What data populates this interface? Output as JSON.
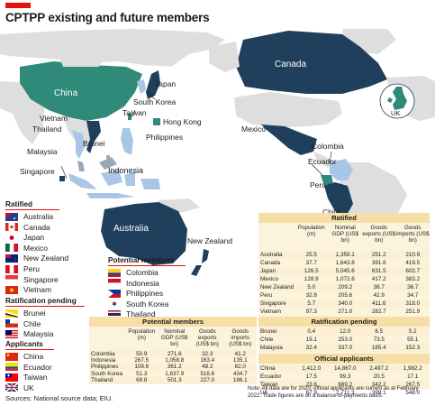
{
  "title": "CPTPP existing and future members",
  "colors": {
    "ratified": "#1f3f5c",
    "potential": "#a9c6e6",
    "pending": "#c8b7a0",
    "applicant": "#2f8a7a",
    "land": "#dedede",
    "accent": "#e3120b",
    "band": "#f5dfa6"
  },
  "map_labels": {
    "canada": "Canada",
    "china": "China",
    "japan": "Japan",
    "south_korea": "South Korea",
    "taiwan": "Taiwan",
    "hong_kong": "Hong Kong",
    "philippines": "Philippines",
    "vietnam": "Vietnam",
    "thailand": "Thailand",
    "malaysia": "Malaysia",
    "brunei": "Brunei",
    "singapore": "Singapore",
    "indonesia": "Indonesia",
    "australia": "Australia",
    "new_zealand": "New Zealand",
    "mexico": "Mexico",
    "colombia": "Colombia",
    "ecuador": "Ecuador",
    "peru": "Peru",
    "chile": "Chile",
    "uk": "UK"
  },
  "legend": {
    "ratified": {
      "heading": "Ratified",
      "items": [
        {
          "name": "Australia",
          "flag": "australia-flag"
        },
        {
          "name": "Canada",
          "flag": "canada-flag"
        },
        {
          "name": "Japan",
          "flag": "japan-flag"
        },
        {
          "name": "Mexico",
          "flag": "mexico-flag"
        },
        {
          "name": "New Zealand",
          "flag": "new-zealand-flag"
        },
        {
          "name": "Peru",
          "flag": "peru-flag"
        },
        {
          "name": "Singapore",
          "flag": "singapore-flag"
        },
        {
          "name": "Vietnam",
          "flag": "vietnam-flag"
        }
      ]
    },
    "pending": {
      "heading": "Ratification pending",
      "items": [
        {
          "name": "Brunei",
          "flag": "brunei-flag"
        },
        {
          "name": "Chile",
          "flag": "chile-flag"
        },
        {
          "name": "Malaysia",
          "flag": "malaysia-flag"
        }
      ]
    },
    "applicants": {
      "heading": "Applicants",
      "items": [
        {
          "name": "China",
          "flag": "china-flag"
        },
        {
          "name": "Ecuador",
          "flag": "ecuador-flag"
        },
        {
          "name": "Taiwan",
          "flag": "taiwan-flag"
        },
        {
          "name": "UK",
          "flag": "uk-flag"
        }
      ]
    },
    "potential": {
      "heading": "Potential members",
      "items": [
        {
          "name": "Colombia",
          "flag": "colombia-flag"
        },
        {
          "name": "Indonesia",
          "flag": "indonesia-flag"
        },
        {
          "name": "Philippines",
          "flag": "philippines-flag"
        },
        {
          "name": "South Korea",
          "flag": "south-korea-flag"
        },
        {
          "name": "Thailand",
          "flag": "thailand-flag"
        }
      ]
    }
  },
  "tables": {
    "columns": [
      "Population (m)",
      "Nominal GDP (US$ bn)",
      "Goods exports (US$ bn)",
      "Goods imports (US$ bn)"
    ],
    "ratified": {
      "heading": "Ratified",
      "rows": [
        [
          "Australia",
          "25.5",
          "1,359.1",
          "251.2",
          "210.9"
        ],
        [
          "Canada",
          "37.7",
          "1,643.8",
          "391.6",
          "419.5"
        ],
        [
          "Japan",
          "126.5",
          "5,045.6",
          "631.5",
          "602.7"
        ],
        [
          "Mexico",
          "128.9",
          "1,072.6",
          "417.2",
          "383.2"
        ],
        [
          "New Zealand",
          "5.0",
          "209.2",
          "38.7",
          "36.7"
        ],
        [
          "Peru",
          "32.8",
          "205.6",
          "42.9",
          "34.7"
        ],
        [
          "Singapore",
          "5.7",
          "340.0",
          "411.6",
          "318.0"
        ],
        [
          "Vietnam",
          "97.3",
          "271.0",
          "282.7",
          "251.9"
        ]
      ]
    },
    "pending": {
      "heading": "Ratification pending",
      "rows": [
        [
          "Brunei",
          "0.4",
          "12.0",
          "6.5",
          "5.2"
        ],
        [
          "Chile",
          "19.1",
          "253.0",
          "73.5",
          "55.1"
        ],
        [
          "Malaysia",
          "32.4",
          "337.0",
          "185.4",
          "152.3"
        ]
      ]
    },
    "applicants": {
      "heading": "Official applicants",
      "rows": [
        [
          "China",
          "1,412.0",
          "14,867.0",
          "2,497.2",
          "1,982.2"
        ],
        [
          "Ecuador",
          "17.5",
          "99.3",
          "20.5",
          "17.1"
        ],
        [
          "Taiwan",
          "23.6",
          "669.2",
          "342.2",
          "267.5"
        ],
        [
          "UK",
          "67.9",
          "2,711.3",
          "399.1",
          "548.0"
        ]
      ]
    },
    "potential": {
      "heading": "Potential members",
      "rows": [
        [
          "Colombia",
          "50.9",
          "271.6",
          "32.3",
          "41.2"
        ],
        [
          "Indonesia",
          "267.5",
          "1,058.8",
          "163.4",
          "135.1"
        ],
        [
          "Philippines",
          "109.6",
          "361.2",
          "48.2",
          "82.0"
        ],
        [
          "South Korea",
          "51.3",
          "1,637.9",
          "516.6",
          "434.7"
        ],
        [
          "Thailand",
          "69.8",
          "501.3",
          "227.0",
          "186.1"
        ]
      ]
    }
  },
  "note": "Note. All data are for 2020; official applicants are current as at February 2022. Trade figures are on a balance-of-payments basis.",
  "source": "Sources: National source data; EIU."
}
